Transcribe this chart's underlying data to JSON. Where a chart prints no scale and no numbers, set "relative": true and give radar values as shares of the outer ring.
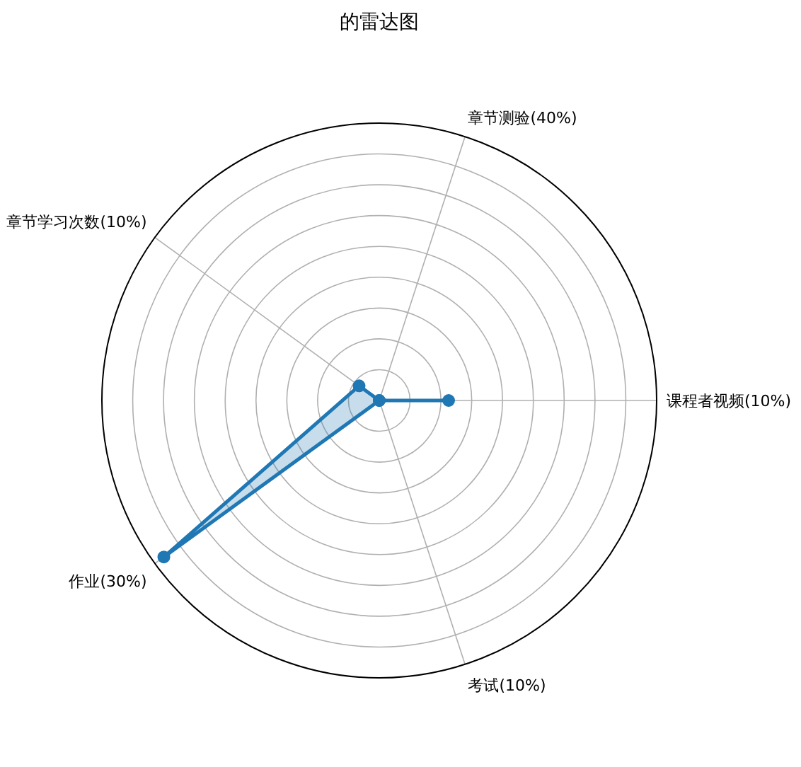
{
  "chart_data": {
    "type": "radar",
    "title": "的雷达图",
    "categories": [
      "章节测验(40%)",
      "课程者视频(10%)",
      "考试(10%)",
      "作业(30%)",
      "章节学习次数(10%)"
    ],
    "relative": true,
    "grid": true,
    "marker": "circle",
    "series": [
      {
        "color": "#1f77b4",
        "values": [
          0,
          0.25,
          0,
          0.96,
          0.09
        ]
      }
    ]
  }
}
